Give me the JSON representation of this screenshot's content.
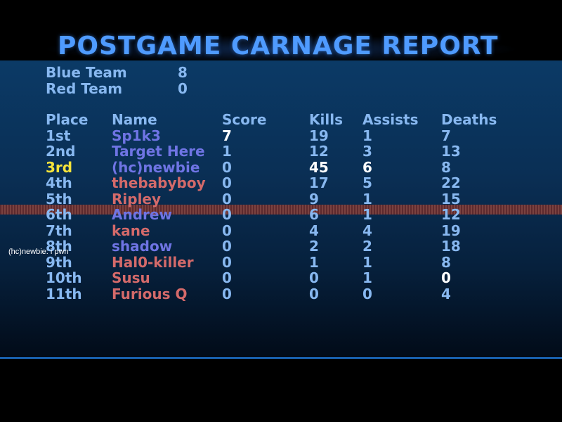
{
  "title": "POSTGAME CARNAGE REPORT",
  "teams": [
    {
      "name": "Blue Team",
      "score": "8"
    },
    {
      "name": "Red Team",
      "score": "0"
    }
  ],
  "headers": {
    "place": "Place",
    "name": "Name",
    "score": "Score",
    "kills": "Kills",
    "assists": "Assists",
    "deaths": "Deaths"
  },
  "players": [
    {
      "place": "1st",
      "name": "Sp1k3",
      "score": "7",
      "kills": "19",
      "assists": "1",
      "deaths": "7"
    },
    {
      "place": "2nd",
      "name": "Target Here",
      "score": "1",
      "kills": "12",
      "assists": "3",
      "deaths": "13"
    },
    {
      "place": "3rd",
      "name": "(hc)newbie",
      "score": "0",
      "kills": "45",
      "assists": "6",
      "deaths": "8"
    },
    {
      "place": "4th",
      "name": "thebabyboy",
      "score": "0",
      "kills": "17",
      "assists": "5",
      "deaths": "22"
    },
    {
      "place": "5th",
      "name": "Ripley",
      "score": "0",
      "kills": "9",
      "assists": "1",
      "deaths": "15"
    },
    {
      "place": "6th",
      "name": "Andrew",
      "score": "0",
      "kills": "6",
      "assists": "1",
      "deaths": "12"
    },
    {
      "place": "7th",
      "name": "kane",
      "score": "0",
      "kills": "4",
      "assists": "4",
      "deaths": "19"
    },
    {
      "place": "8th",
      "name": "shadow",
      "score": "0",
      "kills": "2",
      "assists": "2",
      "deaths": "18"
    },
    {
      "place": "9th",
      "name": "Hal0-killer",
      "score": "0",
      "kills": "1",
      "assists": "1",
      "deaths": "8"
    },
    {
      "place": "10th",
      "name": "Susu",
      "score": "0",
      "kills": "0",
      "assists": "1",
      "deaths": "0"
    },
    {
      "place": "11th",
      "name": "Furious Q",
      "score": "0",
      "kills": "0",
      "assists": "0",
      "deaths": "4"
    }
  ],
  "chat_message": "(hc)newbie: i pwn",
  "colors": {
    "title": "#4f9bff",
    "header_text": "#88b8f0",
    "blue_team_name": "#6f74e4",
    "red_team_name": "#d46a6a",
    "highlight_place": "#f5e23a",
    "highlight_value": "#ffffff"
  }
}
